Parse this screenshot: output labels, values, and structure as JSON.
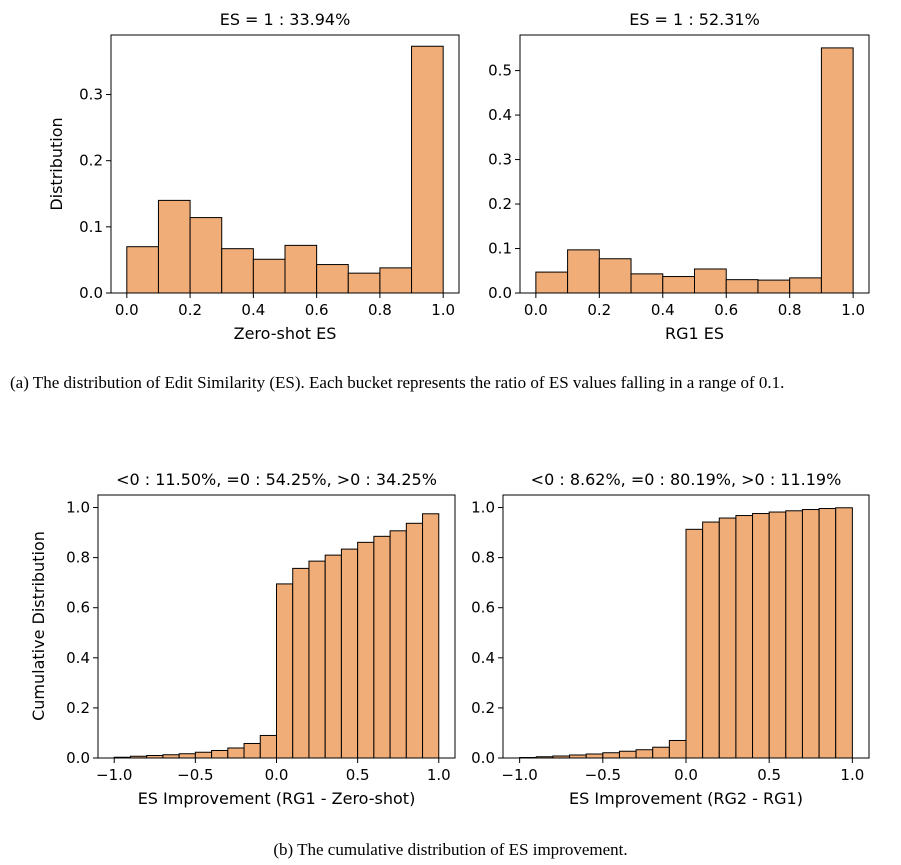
{
  "colors": {
    "bar_fill": "#f0ad78",
    "bar_edge": "#000000"
  },
  "captions": {
    "a": "(a) The distribution of Edit Similarity (ES). Each bucket represents the ratio of ES values falling in a range of 0.1.",
    "b": "(b) The cumulative distribution of ES improvement."
  },
  "chart_data": [
    {
      "type": "bar",
      "title": "ES = 1 : 33.94%",
      "xlabel": "Zero-shot ES",
      "ylabel": "Distribution",
      "bin_edges": [
        0.0,
        0.1,
        0.2,
        0.3,
        0.4,
        0.5,
        0.6,
        0.7,
        0.8,
        0.9,
        1.0
      ],
      "values": [
        0.07,
        0.14,
        0.114,
        0.067,
        0.051,
        0.072,
        0.043,
        0.03,
        0.038,
        0.373
      ],
      "xlim": [
        -0.05,
        1.05
      ],
      "ylim": [
        0,
        0.39
      ],
      "xticks": [
        0.0,
        0.2,
        0.4,
        0.6,
        0.8,
        1.0
      ],
      "xtick_labels": [
        "0.0",
        "0.2",
        "0.4",
        "0.6",
        "0.8",
        "1.0"
      ],
      "yticks": [
        0.0,
        0.1,
        0.2,
        0.3
      ],
      "ytick_labels": [
        "0.0",
        "0.1",
        "0.2",
        "0.3"
      ],
      "grid": false
    },
    {
      "type": "bar",
      "title": "ES = 1 : 52.31%",
      "xlabel": "RG1 ES",
      "ylabel": "",
      "bin_edges": [
        0.0,
        0.1,
        0.2,
        0.3,
        0.4,
        0.5,
        0.6,
        0.7,
        0.8,
        0.9,
        1.0
      ],
      "values": [
        0.047,
        0.097,
        0.077,
        0.043,
        0.037,
        0.054,
        0.03,
        0.029,
        0.034,
        0.551
      ],
      "xlim": [
        -0.05,
        1.05
      ],
      "ylim": [
        0,
        0.58
      ],
      "xticks": [
        0.0,
        0.2,
        0.4,
        0.6,
        0.8,
        1.0
      ],
      "xtick_labels": [
        "0.0",
        "0.2",
        "0.4",
        "0.6",
        "0.8",
        "1.0"
      ],
      "yticks": [
        0.0,
        0.1,
        0.2,
        0.3,
        0.4,
        0.5
      ],
      "ytick_labels": [
        "0.0",
        "0.1",
        "0.2",
        "0.3",
        "0.4",
        "0.5"
      ],
      "grid": false
    },
    {
      "type": "bar",
      "title": "<0 : 11.50%, =0 : 54.25%, >0 : 34.25%",
      "xlabel": "ES Improvement (RG1 - Zero-shot)",
      "ylabel": "Cumulative Distribution",
      "bin_edges": [
        -1.0,
        -0.9,
        -0.8,
        -0.7,
        -0.6,
        -0.5,
        -0.4,
        -0.3,
        -0.2,
        -0.1,
        0.0,
        0.1,
        0.2,
        0.3,
        0.4,
        0.5,
        0.6,
        0.7,
        0.8,
        0.9,
        1.0
      ],
      "values": [
        0.003,
        0.007,
        0.01,
        0.013,
        0.017,
        0.023,
        0.03,
        0.04,
        0.058,
        0.09,
        0.695,
        0.757,
        0.786,
        0.81,
        0.834,
        0.861,
        0.885,
        0.907,
        0.937,
        0.975,
        1.0
      ],
      "xlim": [
        -1.1,
        1.1
      ],
      "ylim": [
        0,
        1.05
      ],
      "xticks": [
        -1.0,
        -0.5,
        0.0,
        0.5,
        1.0
      ],
      "xtick_labels": [
        "−1.0",
        "−0.5",
        "0.0",
        "0.5",
        "1.0"
      ],
      "yticks": [
        0.0,
        0.2,
        0.4,
        0.6,
        0.8,
        1.0
      ],
      "ytick_labels": [
        "0.0",
        "0.2",
        "0.4",
        "0.6",
        "0.8",
        "1.0"
      ],
      "grid": false
    },
    {
      "type": "bar",
      "title": "<0 : 8.62%, =0 : 80.19%, >0 : 11.19%",
      "xlabel": "ES Improvement (RG2 - RG1)",
      "ylabel": "",
      "bin_edges": [
        -1.0,
        -0.9,
        -0.8,
        -0.7,
        -0.6,
        -0.5,
        -0.4,
        -0.3,
        -0.2,
        -0.1,
        0.0,
        0.1,
        0.2,
        0.3,
        0.4,
        0.5,
        0.6,
        0.7,
        0.8,
        0.9,
        1.0
      ],
      "values": [
        0.002,
        0.005,
        0.008,
        0.012,
        0.016,
        0.021,
        0.027,
        0.033,
        0.043,
        0.07,
        0.913,
        0.942,
        0.958,
        0.968,
        0.976,
        0.982,
        0.987,
        0.992,
        0.996,
        0.999,
        1.0
      ],
      "xlim": [
        -1.1,
        1.1
      ],
      "ylim": [
        0,
        1.05
      ],
      "xticks": [
        -1.0,
        -0.5,
        0.0,
        0.5,
        1.0
      ],
      "xtick_labels": [
        "−1.0",
        "−0.5",
        "0.0",
        "0.5",
        "1.0"
      ],
      "yticks": [
        0.0,
        0.2,
        0.4,
        0.6,
        0.8,
        1.0
      ],
      "ytick_labels": [
        "0.0",
        "0.2",
        "0.4",
        "0.6",
        "0.8",
        "1.0"
      ],
      "grid": false
    }
  ]
}
